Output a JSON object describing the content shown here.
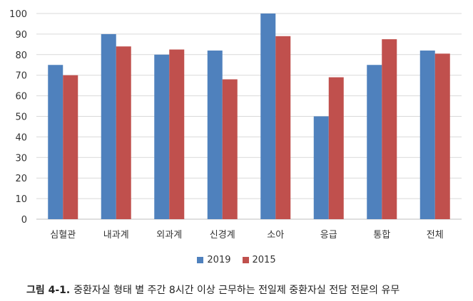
{
  "chart_data": {
    "type": "bar",
    "categories": [
      "심혈관",
      "내과계",
      "외과계",
      "신경계",
      "소아",
      "응급",
      "통합",
      "전체"
    ],
    "series": [
      {
        "name": "2019",
        "color": "#4f81bd",
        "values": [
          75,
          90,
          80,
          82,
          100,
          50,
          75,
          82
        ]
      },
      {
        "name": "2015",
        "color": "#c0504d",
        "values": [
          70,
          84,
          82.5,
          68,
          89,
          69,
          87.5,
          80.5
        ]
      }
    ],
    "ylim": [
      0,
      100
    ],
    "yticks": [
      0,
      10,
      20,
      30,
      40,
      50,
      60,
      70,
      80,
      90,
      100
    ],
    "grid": true,
    "legend_position": "bottom"
  },
  "caption": {
    "label": "그림 4-1.",
    "text": "중환자실 형태 별 주간 8시간 이상 근무하는 전일제 중환자실 전담 전문의 유무"
  }
}
